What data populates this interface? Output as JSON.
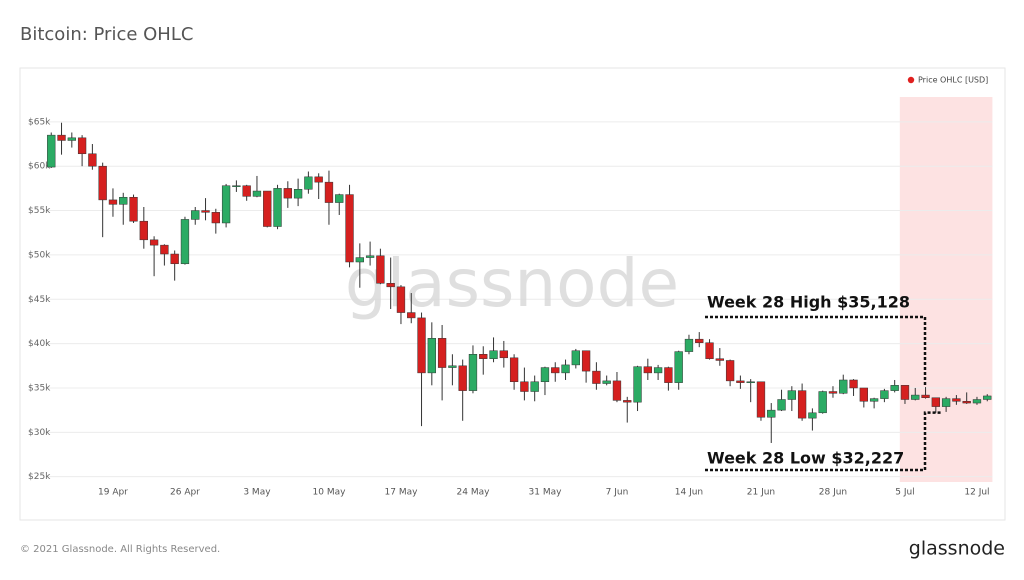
{
  "chart_data": {
    "type": "candlestick",
    "title": "Bitcoin: Price OHLC",
    "watermark": "glassnode",
    "footer": "© 2021 Glassnode. All Rights Reserved.",
    "logo": "glassnode",
    "up_color": "#2bab64",
    "down_color": "#d5201f",
    "grid": true,
    "legend": "top-right",
    "highlight": {
      "from_index": 83,
      "color": "#fde2e2"
    },
    "categories": [
      null,
      null,
      null,
      null,
      null,
      null,
      "19 Apr",
      null,
      null,
      null,
      null,
      null,
      null,
      "26 Apr",
      null,
      null,
      null,
      null,
      null,
      null,
      "3 May",
      null,
      null,
      null,
      null,
      null,
      null,
      "10 May",
      null,
      null,
      null,
      null,
      null,
      null,
      "17 May",
      null,
      null,
      null,
      null,
      null,
      null,
      "24 May",
      null,
      null,
      null,
      null,
      null,
      null,
      "31 May",
      null,
      null,
      null,
      null,
      null,
      null,
      "7 Jun",
      null,
      null,
      null,
      null,
      null,
      null,
      "14 Jun",
      null,
      null,
      null,
      null,
      null,
      null,
      "21 Jun",
      null,
      null,
      null,
      null,
      null,
      null,
      "28 Jun",
      null,
      null,
      null,
      null,
      null,
      null,
      "5 Jul",
      null,
      null,
      null,
      null,
      null,
      null,
      "12 Jul",
      null
    ],
    "series": [
      {
        "name": "Price OHLC [USD]",
        "color": "#e0201f",
        "open": [
          59900,
          63500,
          62900,
          63200,
          61400,
          60000,
          56200,
          55700,
          56500,
          53800,
          51700,
          51100,
          50100,
          49000,
          54000,
          55000,
          54800,
          53600,
          57800,
          57800,
          56600,
          57200,
          53200,
          57500,
          56400,
          57400,
          58800,
          58200,
          55900,
          56800,
          49200,
          49700,
          49900,
          46800,
          46400,
          43500,
          42900,
          36700,
          40600,
          37300,
          37500,
          34700,
          38800,
          38300,
          39200,
          38400,
          35700,
          34600,
          35700,
          37300,
          36700,
          37600,
          39200,
          36900,
          35500,
          35800,
          33600,
          33400,
          37400,
          36700,
          37300,
          35600,
          39100,
          40500,
          40100,
          38300,
          38100,
          35800,
          35600,
          35700,
          31700,
          32500,
          33700,
          34700,
          31600,
          32200,
          34600,
          34400,
          35900,
          35000,
          33500,
          33800,
          34700,
          35300,
          33700,
          34200,
          33900,
          32900,
          33800,
          33500,
          33300,
          33700
        ],
        "high": [
          63800,
          64900,
          63800,
          63500,
          62500,
          60400,
          57500,
          57000,
          56800,
          55400,
          52100,
          51200,
          50500,
          54300,
          55400,
          56400,
          55200,
          58000,
          58400,
          57900,
          58900,
          57200,
          57900,
          58300,
          58600,
          59400,
          59200,
          59500,
          56900,
          57900,
          51300,
          51500,
          50700,
          49700,
          46600,
          45700,
          43500,
          42400,
          42100,
          38800,
          38200,
          39800,
          39700,
          40700,
          40300,
          38800,
          37300,
          36400,
          37400,
          37900,
          38200,
          39400,
          39200,
          37900,
          36400,
          36800,
          34000,
          37500,
          38300,
          37600,
          37400,
          39200,
          41000,
          41300,
          40500,
          39500,
          38200,
          36400,
          36000,
          35700,
          33300,
          34800,
          35200,
          35500,
          32700,
          34700,
          35200,
          36500,
          36000,
          35000,
          33900,
          34900,
          35900,
          35300,
          35000,
          35100,
          33900,
          34000,
          34200,
          34500,
          34000,
          34300
        ],
        "low": [
          59800,
          61300,
          62100,
          60000,
          59600,
          52000,
          54300,
          53400,
          53600,
          50700,
          47600,
          48800,
          47100,
          48900,
          53400,
          53900,
          52400,
          53100,
          57100,
          56100,
          56500,
          53100,
          52900,
          55300,
          55500,
          56900,
          56300,
          53400,
          54500,
          48600,
          46300,
          48800,
          46700,
          43900,
          42200,
          42300,
          30700,
          35300,
          33600,
          35300,
          31300,
          34400,
          36500,
          37900,
          37300,
          34800,
          33600,
          33500,
          34200,
          35700,
          35900,
          37200,
          35600,
          34800,
          35300,
          33400,
          31100,
          32400,
          35900,
          35900,
          34700,
          34800,
          38800,
          39600,
          38200,
          37500,
          35200,
          34900,
          33400,
          31300,
          28800,
          32400,
          32400,
          31300,
          30200,
          32100,
          33900,
          34300,
          34100,
          32800,
          32700,
          33400,
          34500,
          33200,
          33600,
          33800,
          32200,
          32300,
          33100,
          33200,
          33100,
          33500
        ],
        "close": [
          63500,
          62900,
          63200,
          61400,
          60000,
          56200,
          55700,
          56500,
          53800,
          51700,
          51100,
          50100,
          49000,
          54000,
          55000,
          54800,
          53600,
          57800,
          57800,
          56600,
          57200,
          53200,
          57500,
          56400,
          57400,
          58800,
          58200,
          55900,
          56800,
          49200,
          49700,
          49900,
          46800,
          46400,
          43500,
          42900,
          36700,
          40600,
          37300,
          37500,
          34700,
          38800,
          38300,
          39200,
          38400,
          35700,
          34600,
          35700,
          37300,
          36700,
          37600,
          39200,
          36900,
          35500,
          35800,
          33600,
          33400,
          37400,
          36700,
          37300,
          35600,
          39100,
          40500,
          40100,
          38300,
          38100,
          35800,
          35600,
          35700,
          31700,
          32500,
          33700,
          34700,
          31600,
          32200,
          34600,
          34400,
          35900,
          35000,
          33500,
          33800,
          34700,
          35300,
          33700,
          34200,
          33900,
          32900,
          33800,
          33500,
          33300,
          33700,
          34100
        ]
      }
    ],
    "ylim": [
      24400,
      67800
    ],
    "yticks": [
      {
        "value": 25000,
        "label": "$25k"
      },
      {
        "value": 30000,
        "label": "$30k"
      },
      {
        "value": 35000,
        "label": "$35k"
      },
      {
        "value": 40000,
        "label": "$40k"
      },
      {
        "value": 45000,
        "label": "$45k"
      },
      {
        "value": 50000,
        "label": "$50k"
      },
      {
        "value": 55000,
        "label": "$55k"
      },
      {
        "value": 60000,
        "label": "$60k"
      },
      {
        "value": 65000,
        "label": "$65k"
      }
    ],
    "annotations": [
      {
        "text": "Week 28 High $35,128",
        "value": 35128
      },
      {
        "text": "Week 28 Low $32,227",
        "value": 32227
      }
    ]
  }
}
